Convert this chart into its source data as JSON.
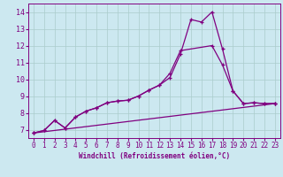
{
  "background_color": "#cce8f0",
  "line_color": "#800080",
  "xlim": [
    -0.5,
    23.5
  ],
  "ylim": [
    6.5,
    14.5
  ],
  "xticks": [
    0,
    1,
    2,
    3,
    4,
    5,
    6,
    7,
    8,
    9,
    10,
    11,
    12,
    13,
    14,
    15,
    16,
    17,
    18,
    19,
    20,
    21,
    22,
    23
  ],
  "yticks": [
    7,
    8,
    9,
    10,
    11,
    12,
    13,
    14
  ],
  "xlabel": "Windchill (Refroidissement éolien,°C)",
  "series1_x": [
    0,
    1,
    2,
    3,
    4,
    5,
    6,
    7,
    8,
    9,
    10,
    11,
    12,
    13,
    14,
    15,
    16,
    17,
    18,
    19,
    20,
    21,
    22,
    23
  ],
  "series1_y": [
    6.8,
    6.95,
    7.55,
    7.1,
    7.75,
    8.1,
    8.3,
    8.6,
    8.7,
    8.75,
    9.0,
    9.35,
    9.65,
    10.1,
    11.5,
    13.55,
    13.4,
    14.0,
    11.8,
    9.3,
    8.55,
    8.6,
    8.55,
    8.55
  ],
  "series2_x": [
    0,
    1,
    2,
    3,
    4,
    5,
    6,
    7,
    8,
    9,
    10,
    11,
    12,
    13,
    14,
    17,
    18,
    19,
    20,
    21,
    22,
    23
  ],
  "series2_y": [
    6.8,
    6.95,
    7.55,
    7.1,
    7.75,
    8.1,
    8.3,
    8.6,
    8.7,
    8.75,
    9.0,
    9.35,
    9.65,
    10.35,
    11.7,
    12.0,
    10.85,
    9.3,
    8.55,
    8.6,
    8.55,
    8.55
  ],
  "series3_x": [
    0,
    23
  ],
  "series3_y": [
    6.8,
    8.55
  ],
  "grid_color": "#aacccc",
  "tick_fontsize": 5.5,
  "xlabel_fontsize": 5.5
}
